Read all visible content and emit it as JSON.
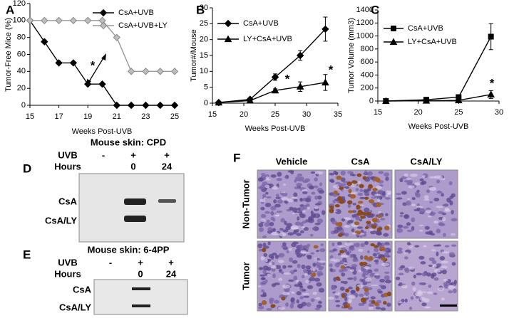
{
  "chart_data": [
    {
      "type": "line",
      "panel": "A",
      "xlabel": "Weeks Post-UVB",
      "ylabel": "Tumor-Free Mice (%)",
      "x": [
        15,
        16,
        17,
        18,
        19,
        20,
        21,
        22,
        23,
        24,
        25
      ],
      "xlim": [
        15,
        25
      ],
      "xticks": [
        15,
        17,
        19,
        21,
        23,
        25
      ],
      "ylim": [
        0,
        120
      ],
      "yticks": [
        0,
        20,
        40,
        60,
        80,
        100,
        120
      ],
      "legend": "upper right",
      "annotations": [
        "*"
      ],
      "series": [
        {
          "name": "CsA+UVB",
          "color": "#000000",
          "marker": "diamond",
          "values": [
            100,
            75,
            50,
            50,
            25,
            25,
            0,
            0,
            0,
            0,
            0
          ]
        },
        {
          "name": "CsA+UVB+LY",
          "color": "#bdbdbd",
          "marker": "diamond",
          "values": [
            100,
            100,
            100,
            100,
            100,
            100,
            80,
            40,
            40,
            40,
            40
          ]
        }
      ]
    },
    {
      "type": "line",
      "panel": "B",
      "xlabel": "Weeks Post-UVB",
      "ylabel": "Tumor#/Mouse",
      "x": [
        16,
        21,
        25,
        29,
        33
      ],
      "xlim": [
        15,
        35
      ],
      "xticks": [
        15,
        20,
        25,
        30,
        35
      ],
      "ylim": [
        0,
        30
      ],
      "yticks": [
        0,
        5,
        10,
        15,
        20,
        25,
        30
      ],
      "legend": "upper left",
      "annotations": [
        "*",
        "*"
      ],
      "series": [
        {
          "name": "CsA+UVB",
          "color": "#000000",
          "marker": "diamond",
          "values": [
            0.2,
            1.2,
            8.2,
            15,
            23.3
          ],
          "errors": [
            0.3,
            0.5,
            1,
            1.5,
            3.8
          ]
        },
        {
          "name": "LY+CsA+UVB",
          "color": "#000000",
          "marker": "triangle",
          "values": [
            0.2,
            0.8,
            4,
            5.2,
            6.5
          ],
          "errors": [
            0.2,
            0.3,
            0.5,
            1.5,
            2.5
          ]
        }
      ]
    },
    {
      "type": "line",
      "panel": "C",
      "xlabel": "Weeks Post-UVB",
      "ylabel": "Tumor Volume (mm3)",
      "x": [
        16,
        21,
        25,
        29
      ],
      "xlim": [
        15,
        30
      ],
      "xticks": [
        15,
        20,
        25,
        30
      ],
      "ylim": [
        0,
        1400
      ],
      "yticks": [
        0,
        200,
        400,
        600,
        800,
        1000,
        1200,
        1400
      ],
      "legend": "upper left",
      "annotations": [
        "*"
      ],
      "series": [
        {
          "name": "CsA+UVB",
          "color": "#000000",
          "marker": "square",
          "values": [
            0,
            20,
            60,
            990
          ],
          "errors": [
            0,
            10,
            30,
            200
          ]
        },
        {
          "name": "LY+CsA+UVB",
          "color": "#000000",
          "marker": "triangle",
          "values": [
            0,
            5,
            10,
            100
          ],
          "errors": [
            0,
            5,
            5,
            60
          ]
        }
      ]
    }
  ],
  "panel_d": {
    "label": "D",
    "title": "Mouse skin: CPD",
    "row_headers": [
      "UVB",
      "Hours"
    ],
    "uvb": [
      "-",
      "+",
      "+"
    ],
    "hours": [
      "0",
      "24"
    ],
    "lanes": [
      "CsA",
      "CsA/LY"
    ]
  },
  "panel_e": {
    "label": "E",
    "title": "Mouse skin: 6-4PP",
    "row_headers": [
      "UVB",
      "Hours"
    ],
    "uvb": [
      "-",
      "+",
      "+"
    ],
    "hours": [
      "0",
      "24"
    ],
    "lanes": [
      "CsA",
      "CsA/LY"
    ]
  },
  "panel_f": {
    "label": "F",
    "columns": [
      "Vehicle",
      "CsA",
      "CsA/LY"
    ],
    "rows": [
      "Non-Tumor",
      "Tumor"
    ]
  }
}
